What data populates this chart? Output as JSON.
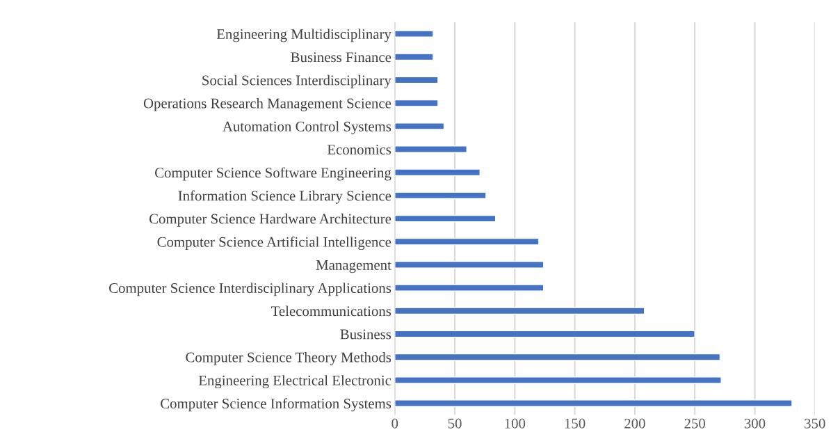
{
  "chart_data": {
    "type": "bar",
    "orientation": "horizontal",
    "categories": [
      "Engineering Multidisciplinary",
      "Business Finance",
      "Social Sciences Interdisciplinary",
      "Operations Research Management Science",
      "Automation Control Systems",
      "Economics",
      "Computer Science Software Engineering",
      "Information Science Library Science",
      "Computer Science Hardware Architecture",
      "Computer Science Artificial Intelligence",
      "Management",
      "Computer Science Interdisciplinary Applications",
      "Telecommunications",
      "Business",
      "Computer Science Theory Methods",
      "Engineering Electrical Electronic",
      "Computer Science Information Systems"
    ],
    "values": [
      32,
      32,
      36,
      36,
      41,
      60,
      71,
      76,
      84,
      120,
      124,
      124,
      208,
      250,
      271,
      272,
      331
    ],
    "color": "#4472c4",
    "xlim": [
      0,
      350
    ],
    "xticks": [
      0,
      50,
      100,
      150,
      200,
      250,
      300,
      350
    ],
    "grid": "x"
  }
}
